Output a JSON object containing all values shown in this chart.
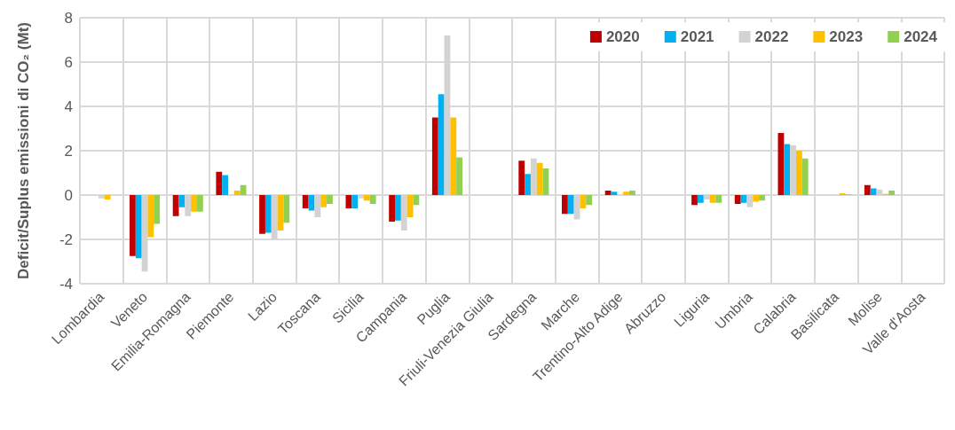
{
  "chart_data": {
    "type": "bar",
    "ylabel": "Deficit/Suplus emissioni di CO₂ (Mt)",
    "categories": [
      "Lombardia",
      "Veneto",
      "Emilia-Romagna",
      "Piemonte",
      "Lazio",
      "Toscana",
      "Sicilia",
      "Campania",
      "Puglia",
      "Friuli-Venezia Giulia",
      "Sardegna",
      "Marche",
      "Trentino-Alto Adige",
      "Abruzzo",
      "Liguria",
      "Umbria",
      "Calabria",
      "Basilicata",
      "Molise",
      "Valle d'Aosta"
    ],
    "series": [
      {
        "name": "2020",
        "color": "#c00000",
        "values": [
          0,
          -2.75,
          -0.95,
          1.05,
          -1.75,
          -0.6,
          -0.6,
          -1.2,
          3.5,
          0,
          1.55,
          -0.85,
          0.2,
          0,
          -0.45,
          -0.4,
          2.8,
          0,
          0.45,
          0
        ]
      },
      {
        "name": "2021",
        "color": "#00b0f0",
        "values": [
          0,
          -2.85,
          -0.55,
          0.9,
          -1.7,
          -0.7,
          -0.6,
          -1.15,
          4.55,
          0,
          0.95,
          -0.85,
          0.15,
          0,
          -0.35,
          -0.35,
          2.3,
          0,
          0.3,
          0
        ]
      },
      {
        "name": "2022",
        "color": "#d3d3d3",
        "values": [
          -0.15,
          -3.45,
          -0.95,
          0,
          -2.0,
          -1.0,
          -0.15,
          -1.6,
          7.2,
          0,
          1.65,
          -1.1,
          0,
          0,
          -0.2,
          -0.55,
          2.25,
          0.03,
          0.25,
          0
        ]
      },
      {
        "name": "2023",
        "color": "#ffc000",
        "values": [
          -0.2,
          -1.9,
          -0.75,
          0.2,
          -1.6,
          -0.55,
          -0.25,
          -1.0,
          3.5,
          0,
          1.45,
          -0.6,
          0.15,
          0,
          -0.35,
          -0.3,
          2.0,
          0.08,
          0.05,
          0
        ]
      },
      {
        "name": "2024",
        "color": "#92d050",
        "values": [
          0,
          -1.3,
          -0.75,
          0.45,
          -1.25,
          -0.4,
          -0.4,
          -0.45,
          1.7,
          0,
          1.2,
          -0.45,
          0.2,
          0,
          -0.35,
          -0.25,
          1.65,
          0.03,
          0.2,
          0
        ]
      }
    ],
    "ylim": [
      -4,
      8
    ],
    "yticks": [
      -4,
      -2,
      0,
      2,
      4,
      6,
      8
    ],
    "grid": true,
    "legend": "top right"
  }
}
